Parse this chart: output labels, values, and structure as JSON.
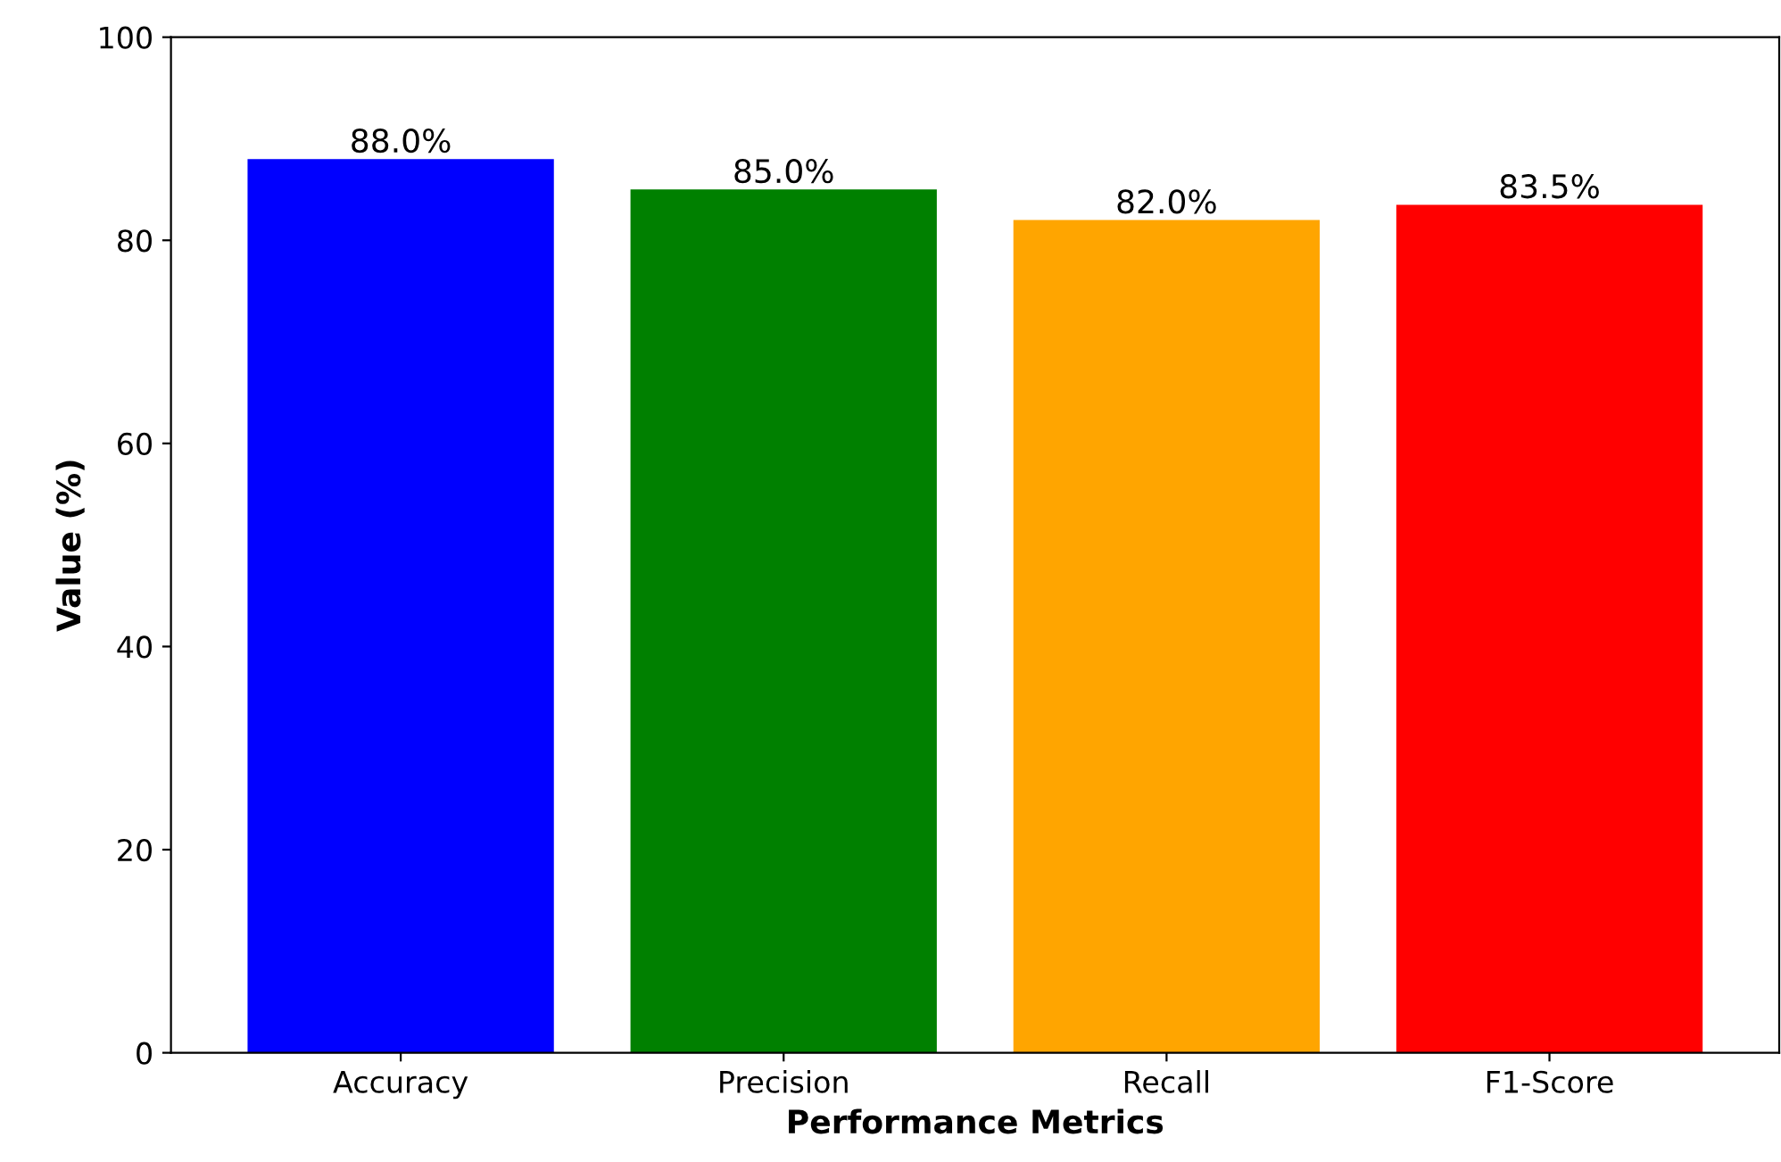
{
  "chart_data": {
    "type": "bar",
    "xlabel": "Performance Metrics",
    "ylabel": "Value (%)",
    "categories": [
      "Accuracy",
      "Precision",
      "Recall",
      "F1-Score"
    ],
    "values": [
      88.0,
      85.0,
      82.0,
      83.5
    ],
    "colors": [
      "#0000ff",
      "#008000",
      "#ffa500",
      "#ff0000"
    ],
    "value_labels": [
      "88.0%",
      "85.0%",
      "82.0%",
      "83.5%"
    ],
    "ylim": [
      0,
      100
    ],
    "yticks": [
      0,
      20,
      40,
      60,
      80,
      100
    ],
    "grid": false,
    "legend": false
  }
}
